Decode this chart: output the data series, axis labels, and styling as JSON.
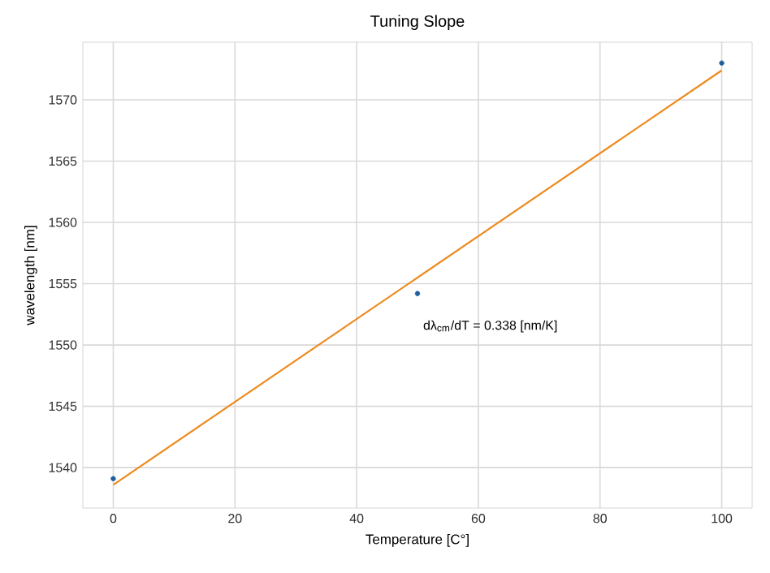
{
  "chart_data": {
    "type": "scatter",
    "title": "Tuning Slope",
    "xlabel": "Temperature [C°]",
    "ylabel": "wavelength [nm]",
    "series": [
      {
        "x": [
          0,
          50,
          100
        ],
        "values": [
          1539.1,
          1554.2,
          1573.0
        ],
        "color": "#1f5f9b",
        "marker": "circle"
      },
      {
        "type": "line",
        "x": [
          0,
          100
        ],
        "values": [
          1538.6,
          1572.4
        ],
        "color": "#ee8a1e"
      }
    ],
    "annotations": [
      "dλ$_{cm}$/dT = 0.338 [nm/K]"
    ],
    "xlim": [
      -5,
      105
    ],
    "ylim": [
      1536.7,
      1574.7
    ],
    "xticks": [
      0,
      20,
      40,
      60,
      80,
      100
    ],
    "yticks": [
      1540,
      1545,
      1550,
      1555,
      1560,
      1565,
      1570
    ],
    "grid": true
  }
}
